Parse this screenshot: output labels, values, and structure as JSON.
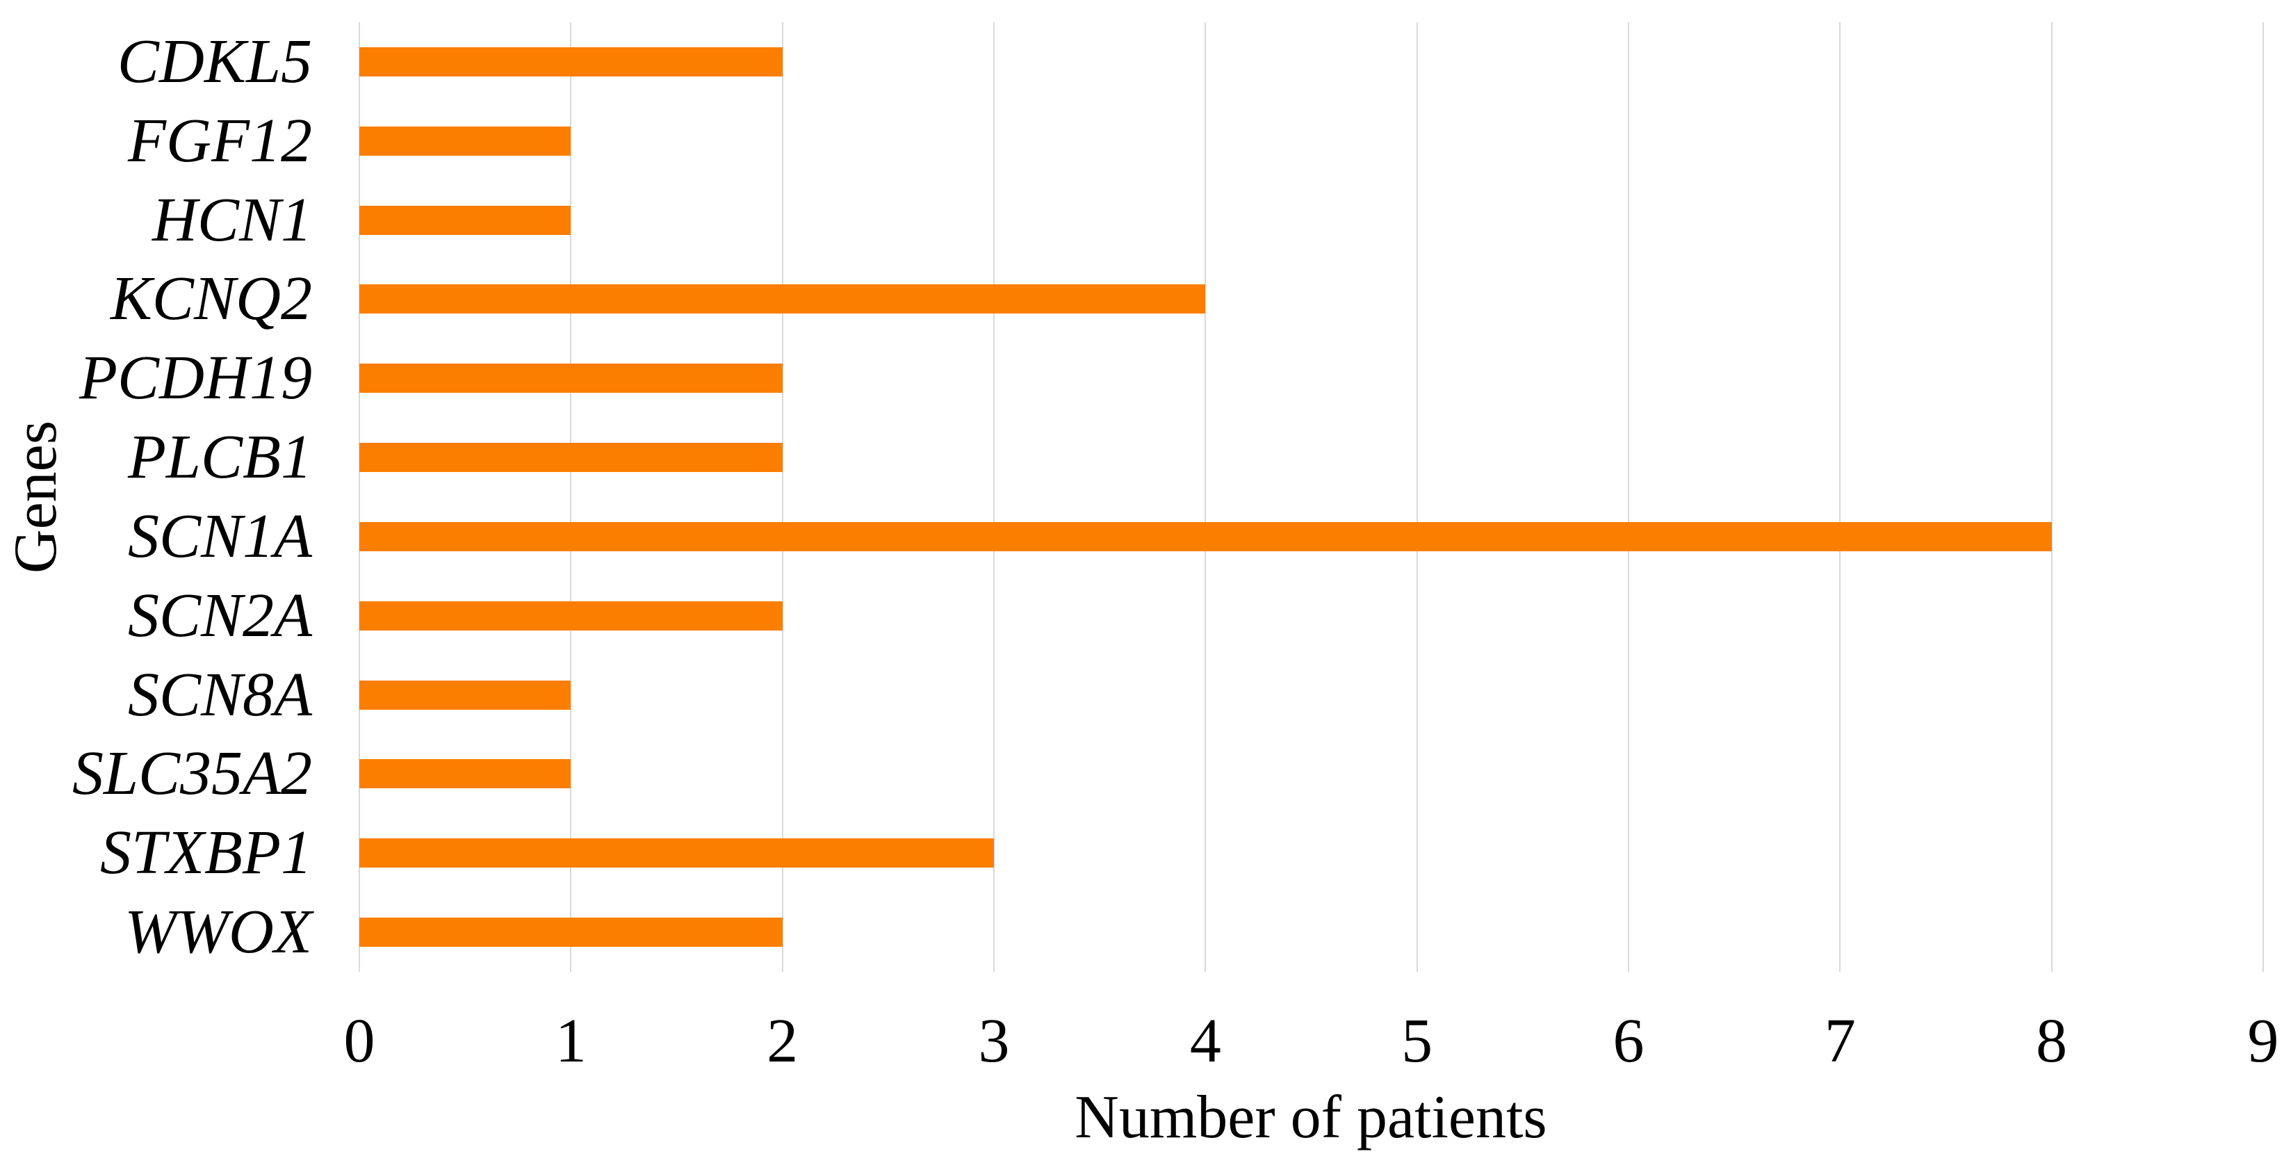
{
  "chart_data": {
    "type": "bar",
    "orientation": "horizontal",
    "title": "",
    "xlabel": "Number of patients",
    "ylabel": "Genes",
    "categories": [
      "CDKL5",
      "FGF12",
      "HCN1",
      "KCNQ2",
      "PCDH19",
      "PLCB1",
      "SCN1A",
      "SCN2A",
      "SCN8A",
      "SLC35A2",
      "STXBP1",
      "WWOX"
    ],
    "values": [
      2,
      1,
      1,
      4,
      2,
      2,
      8,
      2,
      1,
      1,
      3,
      2
    ],
    "xlim": [
      0,
      9
    ],
    "xtick_labels": [
      "0",
      "1",
      "2",
      "3",
      "4",
      "5",
      "6",
      "7",
      "8",
      "9"
    ],
    "grid": "vertical-gridlines-on",
    "legend": "none",
    "bar_color": "#FC7E00",
    "gridline_color": "#D9D9D9",
    "text_color": "#000000",
    "background_color": "#FFFFFF",
    "category_label_style": "italic"
  }
}
